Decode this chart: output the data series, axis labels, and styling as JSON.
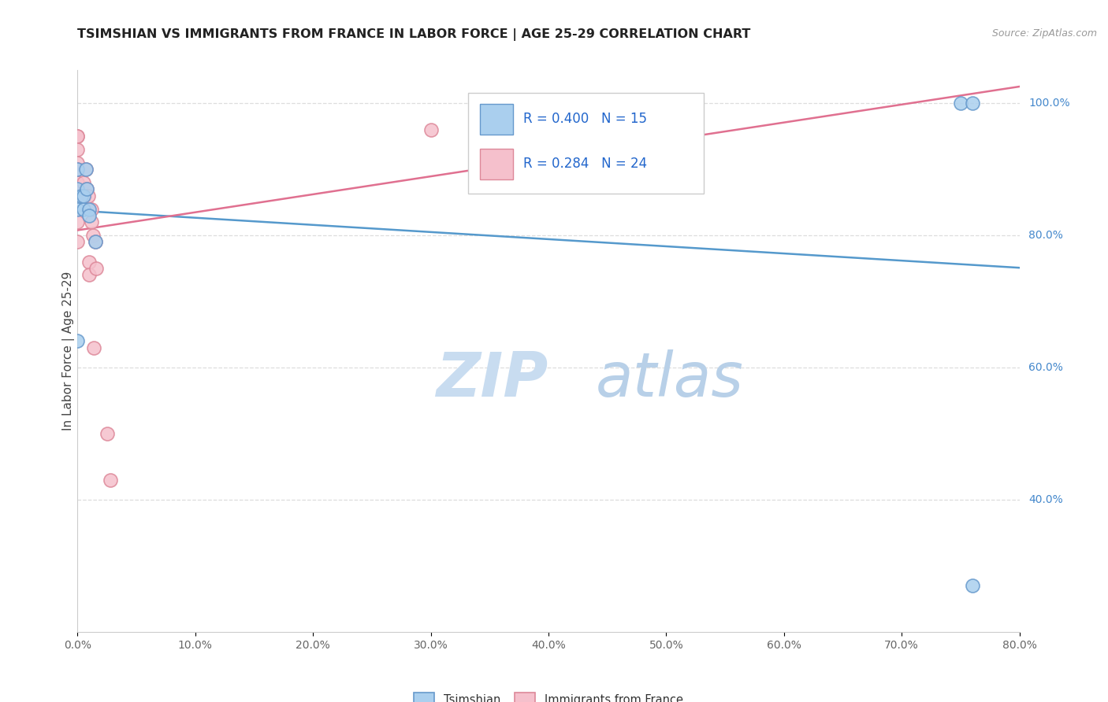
{
  "title": "TSIMSHIAN VS IMMIGRANTS FROM FRANCE IN LABOR FORCE | AGE 25-29 CORRELATION CHART",
  "source_text": "Source: ZipAtlas.com",
  "ylabel": "In Labor Force | Age 25-29",
  "xlim": [
    0.0,
    0.8
  ],
  "ylim": [
    0.2,
    1.05
  ],
  "tsimshian_x": [
    0.0,
    0.0,
    0.0,
    0.003,
    0.005,
    0.005,
    0.007,
    0.008,
    0.01,
    0.01,
    0.015,
    0.75,
    0.76,
    0.76,
    0.0
  ],
  "tsimshian_y": [
    0.9,
    0.87,
    0.84,
    0.86,
    0.84,
    0.86,
    0.9,
    0.87,
    0.84,
    0.83,
    0.79,
    1.0,
    1.0,
    0.27,
    0.64
  ],
  "france_x": [
    0.0,
    0.0,
    0.0,
    0.0,
    0.0,
    0.0,
    0.0,
    0.0,
    0.005,
    0.006,
    0.007,
    0.008,
    0.009,
    0.01,
    0.01,
    0.012,
    0.012,
    0.013,
    0.014,
    0.015,
    0.016,
    0.025,
    0.028,
    0.3
  ],
  "france_y": [
    0.95,
    0.95,
    0.93,
    0.91,
    0.9,
    0.88,
    0.82,
    0.79,
    0.88,
    0.86,
    0.9,
    0.87,
    0.86,
    0.76,
    0.74,
    0.84,
    0.82,
    0.8,
    0.63,
    0.79,
    0.75,
    0.5,
    0.43,
    0.96
  ],
  "tsimshian_R": 0.4,
  "tsimshian_N": 15,
  "france_R": 0.284,
  "france_N": 24,
  "blue_color": "#aacfee",
  "blue_line_color": "#5599cc",
  "blue_edge_color": "#6699cc",
  "pink_color": "#f5c0cc",
  "pink_line_color": "#e07090",
  "pink_edge_color": "#dd8899",
  "watermark_zip_color": "#c8dcf0",
  "watermark_atlas_color": "#c8dcf0",
  "grid_color": "#dddddd",
  "right_axis_color": "#4488cc",
  "title_color": "#222222",
  "legend_R_color": "#2266cc",
  "legend_N_color": "#333333",
  "source_color": "#999999"
}
